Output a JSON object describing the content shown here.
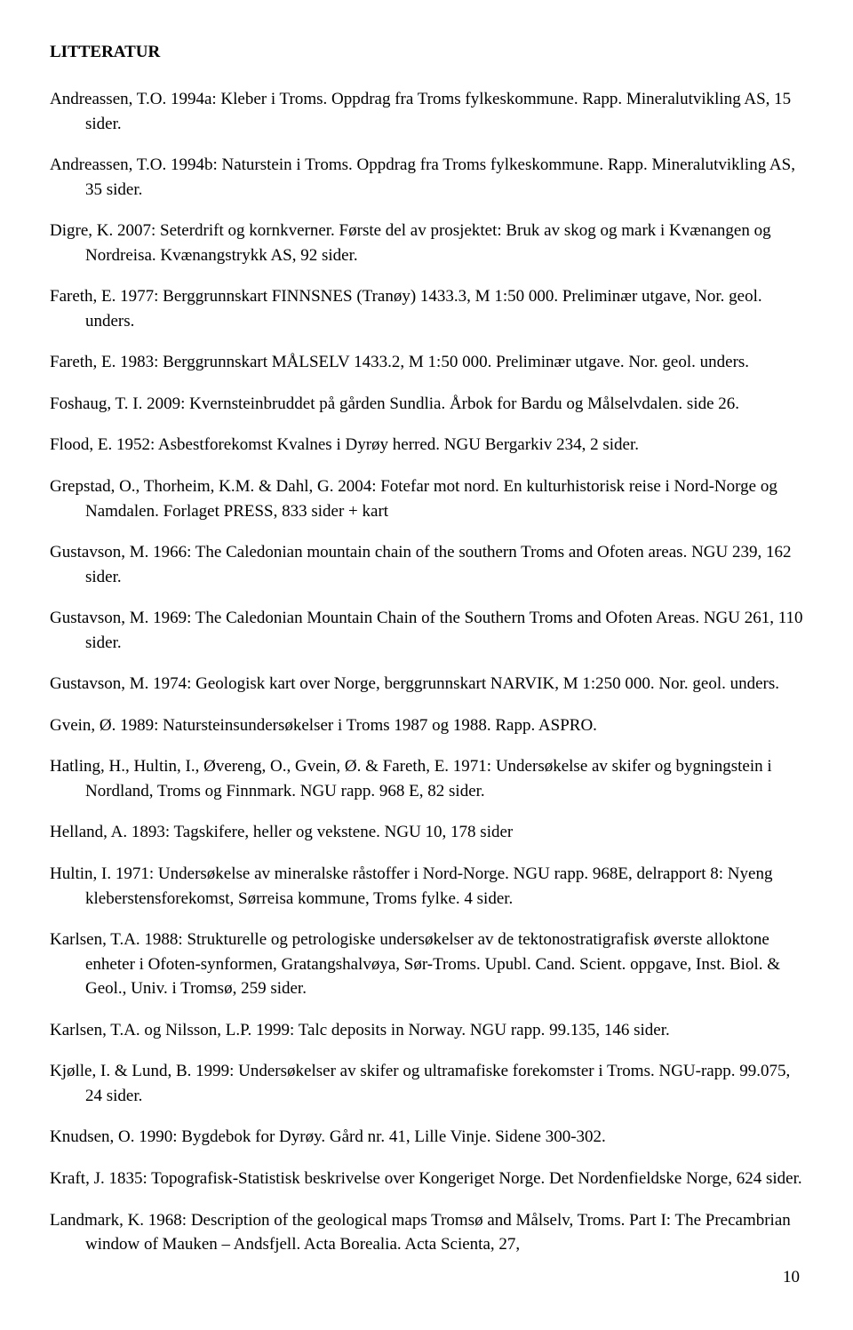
{
  "heading": "LITTERATUR",
  "references": [
    "Andreassen, T.O. 1994a: Kleber i Troms. Oppdrag fra Troms fylkeskommune. Rapp. Mineralutvikling AS, 15 sider.",
    "Andreassen, T.O. 1994b: Naturstein i Troms. Oppdrag fra Troms fylkeskommune. Rapp. Mineralutvikling AS, 35 sider.",
    "Digre, K. 2007: Seterdrift og kornkverner. Første del av prosjektet: Bruk av skog og mark i Kvænangen og Nordreisa. Kvænangstrykk AS, 92 sider.",
    "Fareth, E. 1977: Berggrunnskart FINNSNES (Tranøy) 1433.3, M 1:50 000. Preliminær utgave, Nor. geol. unders.",
    "Fareth, E. 1983: Berggrunnskart MÅLSELV 1433.2, M 1:50 000. Preliminær utgave. Nor. geol. unders.",
    "Foshaug, T. I. 2009: Kvernsteinbruddet på gården Sundlia. Årbok for Bardu og Målselvdalen. side 26.",
    "Flood, E. 1952: Asbestforekomst Kvalnes i Dyrøy herred. NGU Bergarkiv 234, 2 sider.",
    "Grepstad, O., Thorheim, K.M. & Dahl, G. 2004: Fotefar mot nord. En kulturhistorisk reise i Nord-Norge og Namdalen. Forlaget PRESS, 833 sider + kart",
    "Gustavson, M. 1966: The Caledonian mountain chain of the southern Troms and Ofoten areas. NGU 239, 162 sider.",
    "Gustavson, M. 1969: The Caledonian Mountain Chain of the Southern Troms and Ofoten Areas. NGU 261, 110 sider.",
    "Gustavson, M. 1974: Geologisk kart over Norge, berggrunnskart NARVIK, M 1:250 000. Nor. geol. unders.",
    "Gvein, Ø. 1989: Natursteinsundersøkelser i Troms 1987 og 1988. Rapp. ASPRO.",
    "Hatling, H., Hultin, I., Øvereng, O., Gvein, Ø. & Fareth, E. 1971: Undersøkelse av skifer og bygningstein i Nordland, Troms og Finnmark. NGU rapp. 968 E, 82 sider.",
    "Helland, A. 1893: Tagskifere, heller og vekstene. NGU 10, 178 sider",
    "Hultin, I. 1971: Undersøkelse av mineralske råstoffer i Nord-Norge. NGU rapp. 968E, delrapport 8: Nyeng kleberstensforekomst, Sørreisa kommune, Troms fylke. 4 sider.",
    "Karlsen, T.A. 1988: Strukturelle og petrologiske undersøkelser av de tektonostratigrafisk øverste alloktone enheter i Ofoten-synformen, Gratangshalvøya, Sør-Troms. Upubl. Cand. Scient. oppgave, Inst. Biol. & Geol., Univ. i Tromsø, 259 sider.",
    "Karlsen, T.A. og Nilsson, L.P. 1999: Talc deposits in Norway. NGU rapp. 99.135, 146 sider.",
    "Kjølle, I. & Lund, B. 1999: Undersøkelser av skifer og ultramafiske forekomster i Troms. NGU-rapp. 99.075, 24 sider.",
    "Knudsen, O. 1990: Bygdebok for Dyrøy. Gård nr. 41, Lille Vinje. Sidene 300-302.",
    "Kraft, J. 1835: Topografisk-Statistisk beskrivelse over Kongeriget Norge. Det Nordenfieldske Norge, 624 sider.",
    "Landmark, K. 1968: Description of the geological maps Tromsø and Målselv, Troms. Part I: The Precambrian window of Mauken – Andsfjell. Acta Borealia. Acta Scienta, 27,"
  ],
  "page_number": "10"
}
